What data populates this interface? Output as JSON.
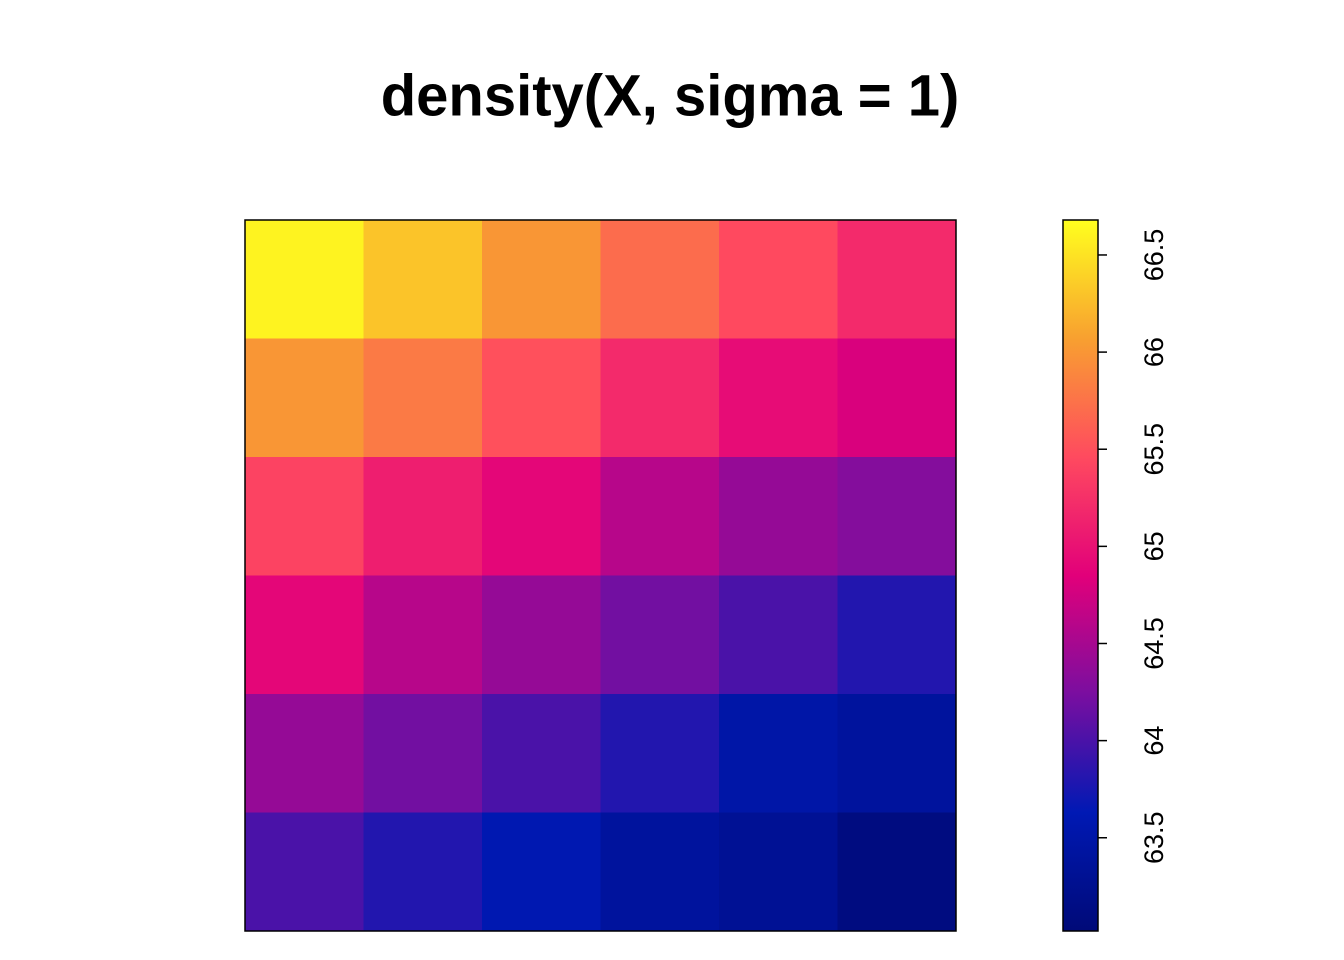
{
  "chart_data": {
    "type": "heatmap",
    "title": "density(X, sigma = 1)",
    "values": [
      [
        66.6,
        66.3,
        66.0,
        65.7,
        65.45,
        65.2
      ],
      [
        66.0,
        65.8,
        65.5,
        65.2,
        64.95,
        64.8
      ],
      [
        65.4,
        65.1,
        64.9,
        64.6,
        64.4,
        64.3
      ],
      [
        64.9,
        64.6,
        64.4,
        64.2,
        64.0,
        63.8
      ],
      [
        64.4,
        64.2,
        64.0,
        63.8,
        63.5,
        63.4
      ],
      [
        64.0,
        63.8,
        63.6,
        63.4,
        63.3,
        63.1
      ]
    ],
    "zlim": [
      63.02,
      66.68
    ],
    "zticks": [
      63.5,
      64,
      64.5,
      65,
      65.5,
      66,
      66.5
    ],
    "colormap": [
      "#000a78",
      "#0019b4",
      "#7a0ea0",
      "#e2007a",
      "#ff4a5f",
      "#f8a030",
      "#ffff1e"
    ]
  }
}
